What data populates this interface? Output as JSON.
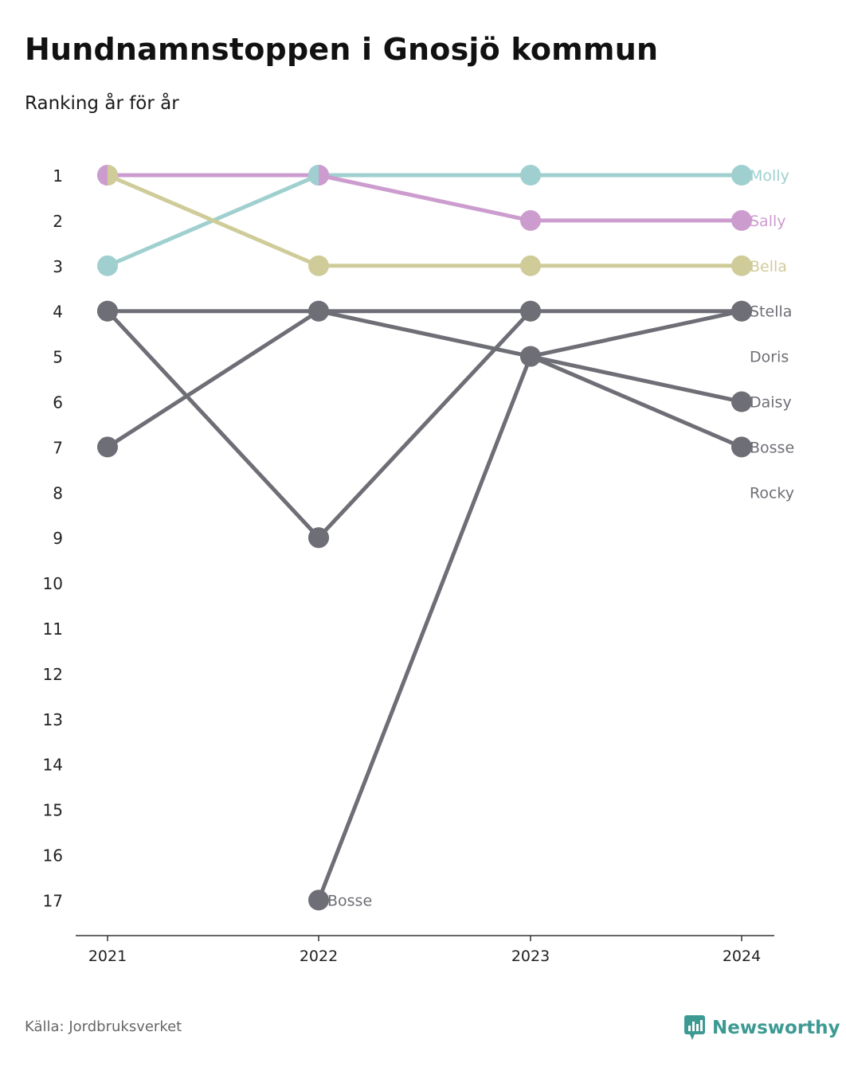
{
  "header": {
    "title": "Hundnamnstoppen i Gnosjö kommun",
    "subtitle": "Ranking år för år"
  },
  "footer": {
    "source": "Källa: Jordbruksverket",
    "brand": "Newsworthy"
  },
  "colors": {
    "Molly": "#9fd0cf",
    "Sally": "#cc9ccf",
    "Bella": "#cfcc9a",
    "other": "#6e6e76",
    "axis": "#333333",
    "brand": "#3d9a93"
  },
  "chart_data": {
    "type": "bump",
    "x": [
      "2021",
      "2022",
      "2023",
      "2024"
    ],
    "y_ticks": [
      "1",
      "2",
      "3",
      "4",
      "5",
      "6",
      "7",
      "8",
      "9",
      "10",
      "11",
      "12",
      "13",
      "14",
      "15",
      "16",
      "17"
    ],
    "ylim": [
      1,
      17
    ],
    "y_reversed": true,
    "series": [
      {
        "name": "Molly",
        "ranks": [
          3,
          1,
          1,
          1
        ],
        "highlight": true
      },
      {
        "name": "Sally",
        "ranks": [
          1,
          1,
          2,
          2
        ],
        "highlight": true
      },
      {
        "name": "Bella",
        "ranks": [
          1,
          3,
          3,
          3
        ],
        "highlight": true
      },
      {
        "name": "Stella",
        "ranks": [
          7,
          4,
          4,
          4
        ],
        "highlight": false
      },
      {
        "name": "Doris",
        "ranks": [
          4,
          4,
          5,
          null
        ],
        "highlight": false
      },
      {
        "name": "Daisy",
        "ranks": [
          null,
          9,
          4,
          null
        ],
        "highlight": false
      },
      {
        "name": "Bosse",
        "ranks": [
          null,
          17,
          5,
          4
        ],
        "highlight": false,
        "label_2022": "Bosse"
      },
      {
        "name": "Rocky",
        "ranks": [
          4,
          9,
          null,
          null
        ],
        "highlight": false
      }
    ],
    "end_labels": [
      "Molly",
      "Sally",
      "Bella",
      "Stella",
      "Doris",
      "Daisy",
      "Bosse",
      "Rocky"
    ],
    "end_label_ranks": [
      1,
      2,
      3,
      4,
      5,
      6,
      7,
      8
    ],
    "extra_points_2024": [
      {
        "rank": 6
      },
      {
        "rank": 7
      }
    ],
    "extra_segments": [
      {
        "from": [
          "2023",
          5
        ],
        "to": [
          "2024",
          6
        ]
      },
      {
        "from": [
          "2023",
          5
        ],
        "to": [
          "2024",
          7
        ]
      }
    ],
    "split_markers": [
      {
        "x": "2021",
        "rank": 1,
        "left": "Sally",
        "right": "Bella"
      },
      {
        "x": "2022",
        "rank": 1,
        "left": "Molly",
        "right": "Sally"
      }
    ],
    "point_label": {
      "text": "Bosse",
      "x": "2022",
      "rank": 17
    }
  }
}
